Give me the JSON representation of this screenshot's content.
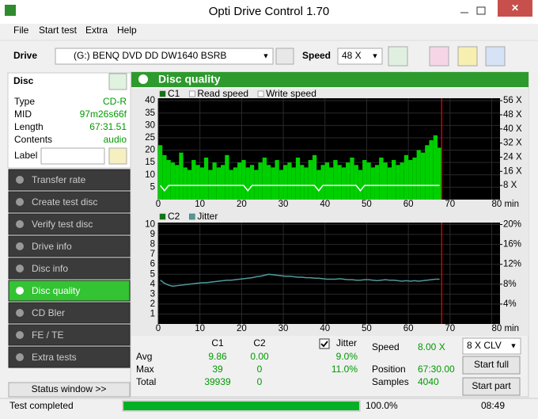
{
  "window": {
    "title": "Opti Drive Control 1.70"
  },
  "menu": [
    "File",
    "Start test",
    "Extra",
    "Help"
  ],
  "toolbar": {
    "drive_label": "Drive",
    "drive": "(G:)  BENQ DVD DD DW1640 BSRB",
    "speed_label": "Speed",
    "speed": "48 X"
  },
  "disc": {
    "title": "Disc",
    "fields": [
      {
        "label": "Type",
        "value": "CD-R"
      },
      {
        "label": "MID",
        "value": "97m26s66f"
      },
      {
        "label": "Length",
        "value": "67:31.51"
      },
      {
        "label": "Contents",
        "value": "audio"
      }
    ],
    "label_field": "Label"
  },
  "nav": [
    "Transfer rate",
    "Create test disc",
    "Verify test disc",
    "Drive info",
    "Disc info",
    "Disc quality",
    "CD Bler",
    "FE / TE",
    "Extra tests"
  ],
  "nav_active": 5,
  "status_window": "Status window >>",
  "panel_title": "Disc quality",
  "charts": [
    {
      "type": "bar",
      "x": [
        0,
        1,
        2,
        3,
        4,
        5,
        6,
        7,
        8,
        9,
        10,
        11,
        12,
        13,
        14,
        15,
        16,
        17,
        18,
        19,
        20,
        21,
        22,
        23,
        24,
        25,
        26,
        27,
        28,
        29,
        30,
        31,
        32,
        33,
        34,
        35,
        36,
        37,
        38,
        39,
        40,
        41,
        42,
        43,
        44,
        45,
        46,
        47,
        48,
        49,
        50,
        51,
        52,
        53,
        54,
        55,
        56,
        57,
        58,
        59,
        60,
        61,
        62,
        63,
        64,
        65,
        66,
        67
      ],
      "xlim": [
        0,
        82
      ],
      "xticks": [
        0,
        10,
        20,
        30,
        40,
        50,
        60,
        70,
        {
          "value": 80,
          "label": "80 min"
        }
      ],
      "ylim": [
        0,
        41
      ],
      "yticks": [
        5,
        10,
        15,
        20,
        25,
        30,
        35,
        40
      ],
      "y2lim": [
        0,
        57.4
      ],
      "y2ticks": [
        {
          "value": 8,
          "label": "8 X"
        },
        {
          "value": 16,
          "label": "16 X"
        },
        {
          "value": 24,
          "label": "24 X"
        },
        {
          "value": 32,
          "label": "32 X"
        },
        {
          "value": 40,
          "label": "40 X"
        },
        {
          "value": 48,
          "label": "48 X"
        },
        {
          "value": 56,
          "label": "56 X"
        }
      ],
      "grid": true,
      "series": [
        {
          "name": "C1",
          "type": "bar",
          "color": "#00d000",
          "values": [
            22,
            18,
            16,
            15,
            14,
            19,
            13,
            12,
            16,
            14,
            13,
            17,
            12,
            15,
            13,
            14,
            18,
            12,
            13,
            15,
            16,
            13,
            14,
            12,
            15,
            17,
            14,
            13,
            16,
            12,
            14,
            15,
            13,
            17,
            14,
            13,
            16,
            18,
            12,
            14,
            15,
            13,
            16,
            14,
            13,
            15,
            17,
            14,
            12,
            16,
            15,
            13,
            14,
            17,
            15,
            13,
            16,
            14,
            15,
            18,
            16,
            17,
            20,
            19,
            22,
            24,
            26,
            21
          ]
        },
        {
          "name": "Read speed",
          "type": "line",
          "axis": "y2",
          "color": "#ffffff",
          "values": [
            8,
            5,
            8,
            8,
            8,
            8,
            8,
            8,
            8,
            8,
            8,
            8,
            8,
            8,
            8,
            8,
            8,
            8,
            8,
            8,
            8,
            5,
            8,
            8,
            8,
            8,
            8,
            8,
            8,
            8,
            8,
            8,
            8,
            8,
            8,
            8,
            8,
            8,
            5,
            8,
            8,
            8,
            8,
            8,
            8,
            8,
            8,
            8,
            5,
            8,
            8,
            8,
            8,
            8,
            8,
            8,
            8,
            8,
            8,
            8,
            8,
            8,
            8,
            8,
            8,
            8,
            8,
            8
          ]
        },
        {
          "name": "Write speed",
          "type": "line",
          "axis": "y2",
          "color": "#ffffff",
          "values": [
            null,
            null,
            null,
            null,
            null,
            null,
            null,
            null,
            null,
            null,
            null,
            null,
            null,
            null,
            null,
            null,
            null,
            null,
            null,
            null,
            null,
            null,
            null,
            null,
            null,
            null,
            null,
            null,
            null,
            null,
            null,
            null,
            null,
            null,
            null,
            null,
            null,
            null,
            null,
            null,
            null,
            null,
            null,
            null,
            null,
            null,
            null,
            null,
            null,
            null,
            null,
            null,
            null,
            null,
            null,
            null,
            null,
            null,
            null,
            null,
            null,
            null,
            null,
            null,
            null,
            null,
            null,
            null
          ]
        }
      ]
    },
    {
      "type": "bar",
      "x": [
        0,
        1,
        2,
        3,
        4,
        5,
        6,
        7,
        8,
        9,
        10,
        11,
        12,
        13,
        14,
        15,
        16,
        17,
        18,
        19,
        20,
        21,
        22,
        23,
        24,
        25,
        26,
        27,
        28,
        29,
        30,
        31,
        32,
        33,
        34,
        35,
        36,
        37,
        38,
        39,
        40,
        41,
        42,
        43,
        44,
        45,
        46,
        47,
        48,
        49,
        50,
        51,
        52,
        53,
        54,
        55,
        56,
        57,
        58,
        59,
        60,
        61,
        62,
        63,
        64,
        65,
        66,
        67
      ],
      "xlim": [
        0,
        82
      ],
      "xticks": [
        0,
        10,
        20,
        30,
        40,
        50,
        60,
        70,
        {
          "value": 80,
          "label": "80 min"
        }
      ],
      "ylim": [
        0,
        10.2
      ],
      "yticks": [
        1,
        2,
        3,
        4,
        5,
        6,
        7,
        8,
        9,
        10
      ],
      "y2lim": [
        0,
        20.4
      ],
      "y2ticks": [
        {
          "value": 4,
          "label": "4%"
        },
        {
          "value": 8,
          "label": "8%"
        },
        {
          "value": 12,
          "label": "12%"
        },
        {
          "value": 16,
          "label": "16%"
        },
        {
          "value": 20,
          "label": "20%"
        }
      ],
      "grid": true,
      "series": [
        {
          "name": "C2",
          "type": "bar",
          "color": "#00d000",
          "values": [
            0,
            0,
            0,
            0,
            0,
            0,
            0,
            0,
            0,
            0,
            0,
            0,
            0,
            0,
            0,
            0,
            0,
            0,
            0,
            0,
            0,
            0,
            0,
            0,
            0,
            0,
            0,
            0,
            0,
            0,
            0,
            0,
            0,
            0,
            0,
            0,
            0,
            0,
            0,
            0,
            0,
            0,
            0,
            0,
            0,
            0,
            0,
            0,
            0,
            0,
            0,
            0,
            0,
            0,
            0,
            0,
            0,
            0,
            0,
            0,
            0,
            0,
            0,
            0,
            0,
            0,
            0,
            0
          ]
        },
        {
          "name": "Jitter",
          "type": "line",
          "axis": "y2",
          "color": "#4f9a9a",
          "values": [
            8.8,
            8.2,
            7.8,
            7.6,
            7.7,
            7.8,
            7.9,
            8.0,
            8.1,
            8.2,
            8.3,
            8.3,
            8.4,
            8.5,
            8.6,
            8.7,
            8.8,
            8.8,
            8.9,
            9.0,
            9.1,
            9.2,
            9.3,
            9.5,
            9.6,
            9.8,
            10.0,
            9.9,
            9.8,
            9.7,
            9.6,
            9.6,
            9.5,
            9.4,
            9.4,
            9.3,
            9.3,
            9.2,
            9.2,
            9.1,
            9.0,
            9.0,
            9.0,
            9.1,
            9.0,
            8.9,
            8.9,
            8.8,
            8.8,
            8.9,
            8.9,
            8.8,
            8.7,
            8.8,
            8.9,
            8.8,
            8.8,
            8.7,
            8.6,
            8.7,
            8.6,
            8.7,
            8.6,
            8.7,
            8.8,
            8.9,
            9.0,
            9.0
          ]
        }
      ]
    }
  ],
  "stats": {
    "columns": [
      "C1",
      "C2",
      "Jitter"
    ],
    "rows": [
      {
        "label": "Avg",
        "values": [
          "9.86",
          "0.00",
          "9.0%"
        ]
      },
      {
        "label": "Max",
        "values": [
          "39",
          "0",
          "11.0%"
        ]
      },
      {
        "label": "Total",
        "values": [
          "39939",
          "0"
        ]
      }
    ]
  },
  "info": [
    {
      "label": "Speed",
      "value": "8.00 X"
    },
    {
      "label": "Position",
      "value": "67:30.00"
    },
    {
      "label": "Samples",
      "value": "4040"
    }
  ],
  "controls": {
    "mode": "8 X CLV",
    "start_full": "Start full",
    "start_part": "Start part"
  },
  "status": {
    "text": "Test completed",
    "progress": {
      "value": 100,
      "label": "100.0%"
    },
    "time": "08:49"
  }
}
